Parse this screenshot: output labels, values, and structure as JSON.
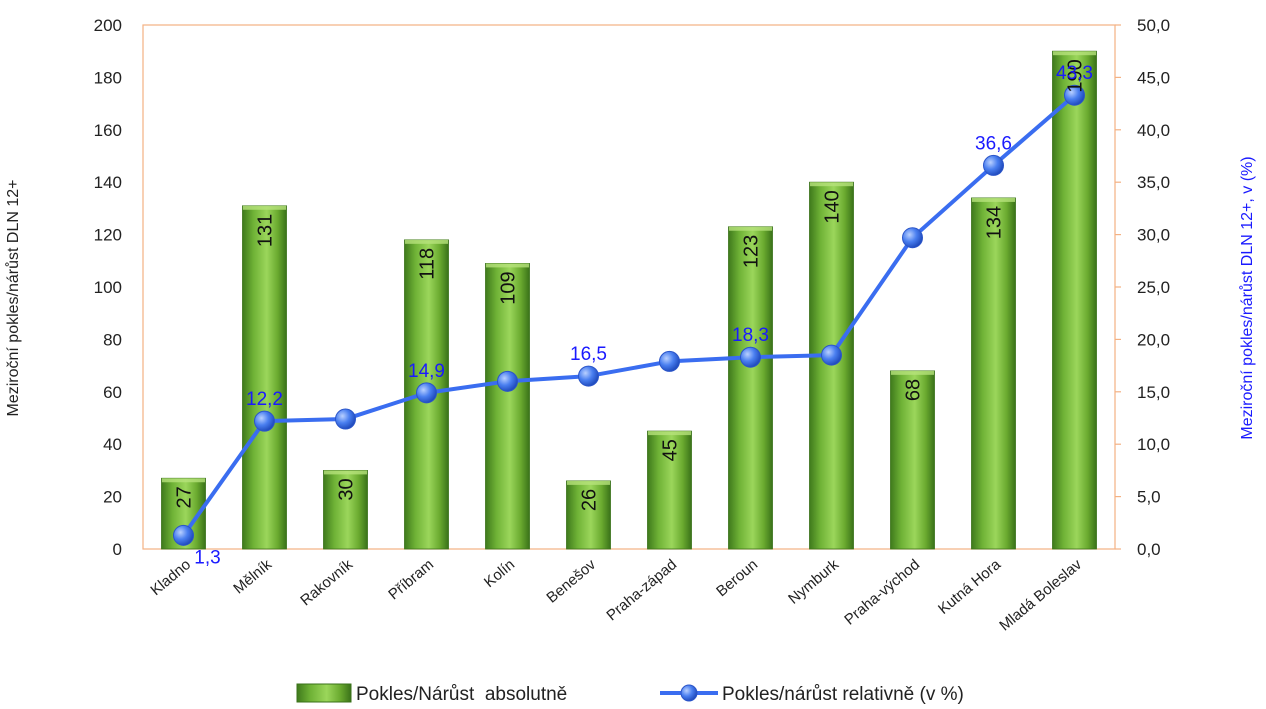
{
  "chart_data": {
    "type": "bar",
    "categories": [
      "Kladno",
      "Mělník",
      "Rakovník",
      "Příbram",
      "Kolín",
      "Benešov",
      "Praha-západ",
      "Beroun",
      "Nymburk",
      "Praha-východ",
      "Kutná Hora",
      "Mladá Boleslav"
    ],
    "series": [
      {
        "name": "Pokles/Nárůst  absolutně",
        "type": "bar",
        "axis": "left",
        "values": [
          27,
          131,
          30,
          118,
          109,
          26,
          45,
          123,
          140,
          68,
          134,
          190
        ],
        "labels": [
          "27",
          "131",
          "30",
          "118",
          "109",
          "26",
          "45",
          "123",
          "140",
          "68",
          "134",
          "190"
        ],
        "color": "#6aaa2f"
      },
      {
        "name": "Pokles/nárůst relativně (v %)",
        "type": "line",
        "axis": "right",
        "values": [
          1.3,
          12.2,
          12.4,
          14.9,
          16.0,
          16.5,
          17.9,
          18.3,
          18.5,
          29.7,
          36.6,
          43.3
        ],
        "labels": [
          "1,3",
          "12,2",
          null,
          "14,9",
          null,
          "16,5",
          null,
          "18,3",
          null,
          null,
          "36,6",
          "43,3"
        ],
        "color": "#3a6df0"
      }
    ],
    "y_left": {
      "label": "Meziroční pokles/nárůst  DLN 12+",
      "ylim": [
        0,
        200
      ],
      "ticks": [
        "0",
        "20",
        "40",
        "60",
        "80",
        "100",
        "120",
        "140",
        "160",
        "180",
        "200"
      ]
    },
    "y_right": {
      "label": "Meziroční pokles/nárůst  DLN 12+, v (%)",
      "ylim": [
        0,
        50
      ],
      "ticks": [
        "0,0",
        "5,0",
        "10,0",
        "15,0",
        "20,0",
        "25,0",
        "30,0",
        "35,0",
        "40,0",
        "45,0",
        "50,0"
      ]
    },
    "legend": "bottom",
    "grid": false,
    "colors": {
      "right_axis": "#f4b183",
      "line_labels": "#1a1aff"
    }
  }
}
